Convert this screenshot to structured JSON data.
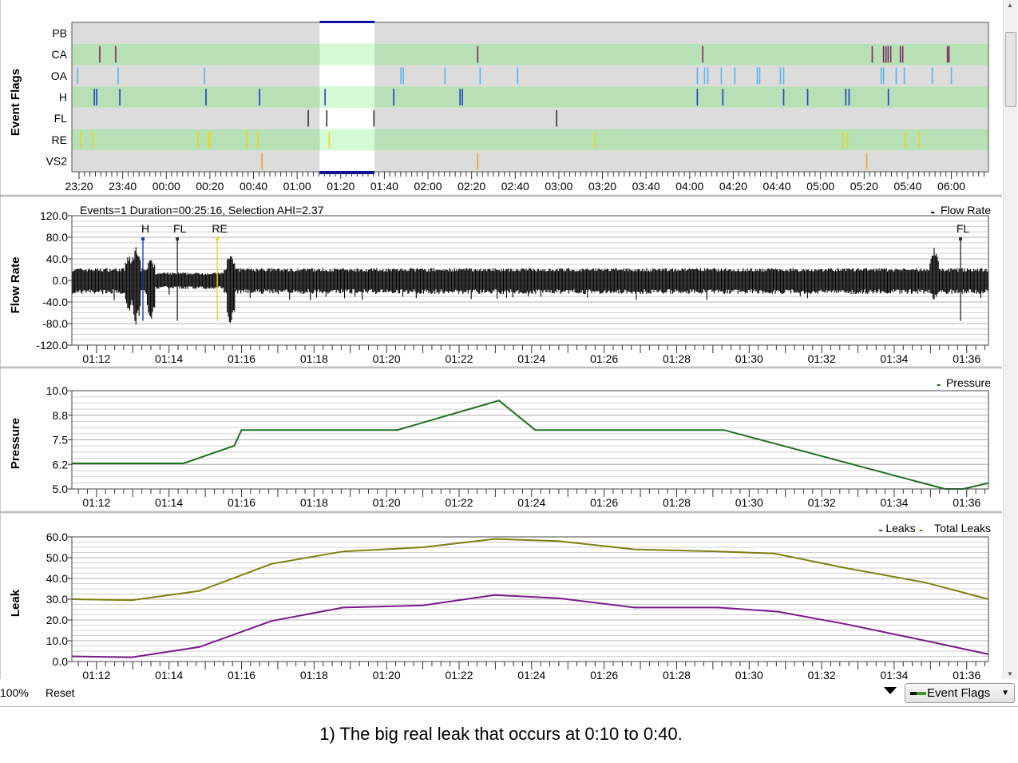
{
  "colors": {
    "band_gray": "#dcdcdc",
    "band_green": "#b7e0b7",
    "selection_gray": "#ffffff",
    "selection_green": "#d4fbd4",
    "selection_bar": "#1010a0",
    "CA": "#7b2a63",
    "OA": "#5ab4f0",
    "H": "#1f3fbf",
    "FL": "#333333",
    "RE": "#e8d820",
    "VS2": "#f0a030",
    "flow": "#000000",
    "pressure": "#1e6e1e",
    "leaks": "#7a1a8a",
    "total_leaks": "#7f7f10"
  },
  "chart_data": [
    {
      "type": "event-timeline",
      "ylabel": "Event Flags",
      "rows": [
        "PB",
        "CA",
        "OA",
        "H",
        "FL",
        "RE",
        "VS2"
      ],
      "time_origin": "23:20",
      "time_unit": "minutes after 23:20",
      "xlim": [
        -3.3,
        417
      ],
      "xtick_labels": [
        "23:20",
        "23:40",
        "00:00",
        "00:20",
        "00:40",
        "01:00",
        "01:20",
        "01:40",
        "02:00",
        "02:20",
        "02:40",
        "03:00",
        "03:20",
        "03:40",
        "04:00",
        "04:20",
        "04:40",
        "05:00",
        "05:20",
        "05:40",
        "06:00"
      ],
      "selection": [
        110.3,
        135.5
      ],
      "events": {
        "PB": [],
        "CA": [
          9.5,
          16.8,
          182.8,
          286,
          363.7,
          368.9,
          370,
          371,
          372.2,
          376.6,
          377.7,
          398.2,
          398.9
        ],
        "OA": [
          -0.7,
          17.9,
          57.5,
          147.6,
          148.7,
          167.8,
          183.9,
          201.1,
          283.5,
          286.8,
          288.3,
          294.5,
          300.7,
          311,
          312.1,
          321.6,
          323.1,
          367.8,
          368.9,
          374.7,
          378.4,
          391.2,
          400
        ],
        "H": [
          7,
          8.1,
          18.7,
          58.2,
          82.8,
          112.8,
          144.3,
          174.7,
          175.8,
          283.5,
          295.2,
          323.1,
          334.1,
          351.6,
          353.1,
          371.1
        ],
        "FL": [
          105.1,
          113.6,
          135.2,
          219
        ],
        "RE": [
          0.7,
          6.2,
          54.6,
          59.3,
          60.1,
          76.9,
          82.1,
          114.7,
          236.6,
          350.2,
          352.4,
          378.8,
          385.3
        ],
        "VS2": [
          83.9,
          182.8,
          361.2
        ]
      }
    },
    {
      "type": "line",
      "ylabel": "Flow Rate",
      "title": "Events=1 Duration=00:25:16, Selection AHI=2.37",
      "legend": [
        "Flow Rate"
      ],
      "legend_placement": "top-right",
      "time_unit": "minutes after 01:00",
      "xlim": [
        71.32,
        96.6
      ],
      "ylim": [
        -120,
        120
      ],
      "ytick_labels": [
        "120.0",
        "80.0",
        "40.0",
        "0.0",
        "-40.0",
        "-80.0",
        "-120.0"
      ],
      "yticks": [
        120,
        80,
        40,
        0,
        -40,
        -80,
        -120
      ],
      "xtick_labels": [
        "01:12",
        "01:14",
        "01:16",
        "01:18",
        "01:20",
        "01:22",
        "01:24",
        "01:26",
        "01:28",
        "01:30",
        "01:32",
        "01:34",
        "01:36"
      ],
      "waveform": {
        "baseline_amplitude": 22,
        "quiet_segments": [
          [
            73.6,
            75.5,
            14
          ]
        ],
        "bursts": [
          {
            "t": 72.9,
            "max": 50,
            "min": -60
          },
          {
            "t": 73.1,
            "max": 70,
            "min": -88
          },
          {
            "t": 73.5,
            "max": 45,
            "min": -82
          },
          {
            "t": 75.7,
            "max": 57,
            "min": -98
          },
          {
            "t": 95.1,
            "max": 70,
            "min": -40
          }
        ]
      },
      "markers": [
        {
          "label": "H",
          "t": 73.28,
          "top": 77,
          "bottom": -75,
          "color_key": "H"
        },
        {
          "label": "FL",
          "t": 74.23,
          "top": 77,
          "bottom": -75,
          "color_key": "FL"
        },
        {
          "label": "RE",
          "t": 75.33,
          "top": 77,
          "bottom": -75,
          "color_key": "RE"
        },
        {
          "label": "FL",
          "t": 95.83,
          "top": 77,
          "bottom": -75,
          "color_key": "FL"
        }
      ]
    },
    {
      "type": "line",
      "ylabel": "Pressure",
      "legend": [
        "Pressure"
      ],
      "legend_placement": "top-right",
      "time_unit": "minutes after 01:00",
      "xlim": [
        71.32,
        96.6
      ],
      "ylim": [
        5.0,
        10.0
      ],
      "ytick_labels": [
        "10.0",
        "8.8",
        "7.5",
        "6.2",
        "5.0"
      ],
      "yticks": [
        10.0,
        8.75,
        7.5,
        6.25,
        5.0
      ],
      "xtick_labels": [
        "01:12",
        "01:14",
        "01:16",
        "01:18",
        "01:20",
        "01:22",
        "01:24",
        "01:26",
        "01:28",
        "01:30",
        "01:32",
        "01:34",
        "01:36"
      ],
      "series": [
        {
          "name": "Pressure",
          "color_key": "pressure",
          "x": [
            71.32,
            74.4,
            75.8,
            76.0,
            80.3,
            83.1,
            84.1,
            89.3,
            95.4,
            95.9,
            96.6
          ],
          "y": [
            6.3,
            6.3,
            7.2,
            8.0,
            8.0,
            9.5,
            8.0,
            8.0,
            5.0,
            5.0,
            5.3
          ]
        }
      ]
    },
    {
      "type": "line",
      "ylabel": "Leak",
      "legend": [
        "Leaks",
        "Total Leaks"
      ],
      "legend_placement": "top-right",
      "time_unit": "minutes after 01:00",
      "xlim": [
        71.32,
        96.6
      ],
      "ylim": [
        0,
        60
      ],
      "ytick_labels": [
        "60.0",
        "50.0",
        "40.0",
        "30.0",
        "20.0",
        "10.0",
        "0.0"
      ],
      "yticks": [
        60,
        50,
        40,
        30,
        20,
        10,
        0
      ],
      "xtick_labels": [
        "01:12",
        "01:14",
        "01:16",
        "01:18",
        "01:20",
        "01:22",
        "01:24",
        "01:26",
        "01:28",
        "01:30",
        "01:32",
        "01:34",
        "01:36"
      ],
      "series": [
        {
          "name": "Total Leaks",
          "color_key": "total_leaks",
          "x": [
            71.32,
            72.97,
            74.84,
            76.82,
            78.8,
            81.0,
            82.98,
            84.74,
            86.83,
            89.15,
            90.69,
            92.67,
            94.87,
            96.6
          ],
          "y": [
            30,
            29.5,
            34,
            47,
            53,
            55,
            59,
            58,
            54,
            53,
            52,
            45,
            38,
            30
          ]
        },
        {
          "name": "Leaks",
          "color_key": "leaks",
          "x": [
            71.32,
            72.97,
            74.84,
            76.82,
            78.8,
            81.0,
            82.98,
            84.74,
            86.83,
            89.15,
            90.8,
            92.67,
            94.87,
            96.6
          ],
          "y": [
            2.5,
            2,
            7,
            19.5,
            26,
            27,
            32,
            30.5,
            26,
            26,
            24,
            18,
            10,
            3.5
          ]
        }
      ]
    }
  ],
  "bottom_bar": {
    "zoom": "100%",
    "reset": "Reset",
    "dropdown": "Event Flags"
  },
  "caption": "1) The big real leak that occurs at 0:10 to 0:40."
}
